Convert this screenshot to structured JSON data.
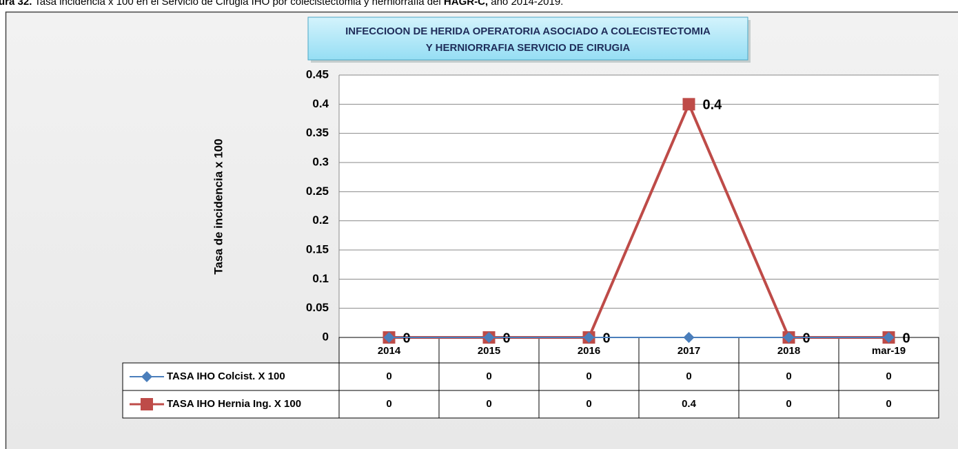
{
  "caption": [
    "ura 32.",
    " Tasa incidencia x 100 en el Servicio de Cirugia IHO por colecistectomia y herniorrafia del ",
    "HAGR-C,",
    " año 2014-2019."
  ],
  "chart_data": {
    "type": "line",
    "title": [
      "INFECCIOON DE HERIDA OPERATORIA ASOCIADO A COLECISTECTOMIA",
      "Y HERNIORRAFIA SERVICIO DE CIRUGIA"
    ],
    "y_label": "Tasa de incidencia x 100",
    "categories": [
      "2014",
      "2015",
      "2016",
      "2017",
      "2018",
      "mar-19"
    ],
    "series": [
      {
        "name": "TASA IHO Colcist. X 100",
        "color": "#4a7ebb",
        "marker": "diamond",
        "values": [
          0,
          0,
          0,
          0,
          0,
          0
        ]
      },
      {
        "name": "TASA IHO Hernia Ing. X 100",
        "color": "#be4b48",
        "marker": "square",
        "values": [
          0,
          0,
          0,
          0.4,
          0,
          0
        ],
        "data_labels": true
      }
    ],
    "ylim": [
      0,
      0.45
    ],
    "yticks": [
      0,
      0.05,
      0.1,
      0.15,
      0.2,
      0.25,
      0.3,
      0.35,
      0.4,
      0.45
    ],
    "grid": true,
    "legend": "table"
  }
}
